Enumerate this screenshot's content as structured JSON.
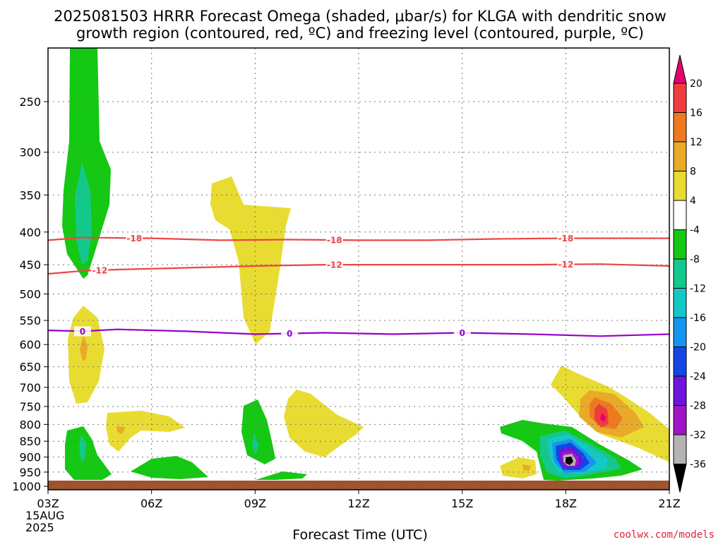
{
  "title": {
    "line1": "2025081503 HRRR Forecast Omega (shaded, μbar/s) for KLGA with dendritic snow",
    "line2": "growth region (contoured, red, ºC) and freezing level (contoured, purple, ºC)"
  },
  "credit": "coolwx.com/models",
  "chart_data": {
    "type": "contour",
    "xlabel": "Forecast Time (UTC)",
    "x_ticks": [
      "03Z",
      "06Z",
      "09Z",
      "12Z",
      "15Z",
      "18Z",
      "21Z"
    ],
    "x_date_lines": [
      "15AUG",
      "2025"
    ],
    "xlim": [
      3,
      21
    ],
    "y_ticks": [
      250,
      300,
      350,
      400,
      450,
      500,
      550,
      600,
      650,
      700,
      750,
      800,
      850,
      900,
      950,
      1000
    ],
    "ylim_hpa": [
      1025,
      200
    ],
    "y_scale": "log",
    "grid": true,
    "colorbar": {
      "ticks": [
        "20",
        "16",
        "12",
        "8",
        "4",
        "-4",
        "-8",
        "-12",
        "-16",
        "-20",
        "-24",
        "-28",
        "-32",
        "-36"
      ],
      "colors": [
        "#e8006e",
        "#f03c3c",
        "#f07820",
        "#e8aa28",
        "#e8dc32",
        "#ffffff",
        "#14c814",
        "#14c88c",
        "#14c8c8",
        "#1496f0",
        "#1446e6",
        "#6e14dc",
        "#a014c8",
        "#b4b4b4",
        "#000000"
      ]
    },
    "contours": [
      {
        "name": "-18",
        "color": "#ee4444",
        "labels": [
          "-18",
          "-18",
          "-18"
        ],
        "x": [
          3,
          4,
          6,
          8,
          10,
          12,
          14,
          16,
          18,
          20,
          21
        ],
        "y": [
          412,
          408,
          409,
          412,
          411,
          412,
          412,
          410,
          409,
          409,
          409
        ]
      },
      {
        "name": "-12",
        "color": "#ee4444",
        "labels": [
          "-12",
          "-12",
          "-12"
        ],
        "x": [
          3,
          4,
          5,
          7,
          9,
          11,
          13,
          15,
          17,
          19,
          21
        ],
        "y": [
          465,
          460,
          458,
          455,
          452,
          450,
          450,
          450,
          450,
          449,
          452
        ]
      },
      {
        "name": "0",
        "color": "#9900cc",
        "labels": [
          "0",
          "0",
          "0"
        ],
        "x": [
          3,
          4,
          5,
          7,
          9,
          11,
          13,
          15,
          17,
          19,
          21
        ],
        "y": [
          570,
          572,
          568,
          572,
          578,
          575,
          578,
          575,
          578,
          582,
          578
        ]
      }
    ],
    "omega_features": [
      {
        "t": 4.0,
        "p": 380,
        "sign": "negative",
        "peak": -8
      },
      {
        "t": 4.0,
        "p": 600,
        "sign": "positive",
        "peak": 8
      },
      {
        "t": 5.3,
        "p": 820,
        "sign": "positive",
        "peak": 8
      },
      {
        "t": 4.0,
        "p": 900,
        "sign": "negative",
        "peak": -12
      },
      {
        "t": 6.5,
        "p": 960,
        "sign": "negative",
        "peak": -4
      },
      {
        "t": 8.8,
        "p": 420,
        "sign": "positive",
        "peak": 4
      },
      {
        "t": 9.0,
        "p": 860,
        "sign": "negative",
        "peak": -12
      },
      {
        "t": 10.5,
        "p": 800,
        "sign": "positive",
        "peak": 4
      },
      {
        "t": 19.0,
        "p": 790,
        "sign": "positive",
        "peak": 20
      },
      {
        "t": 18.0,
        "p": 940,
        "sign": "negative",
        "peak": -36
      },
      {
        "t": 16.7,
        "p": 960,
        "sign": "positive",
        "peak": 8
      }
    ]
  }
}
